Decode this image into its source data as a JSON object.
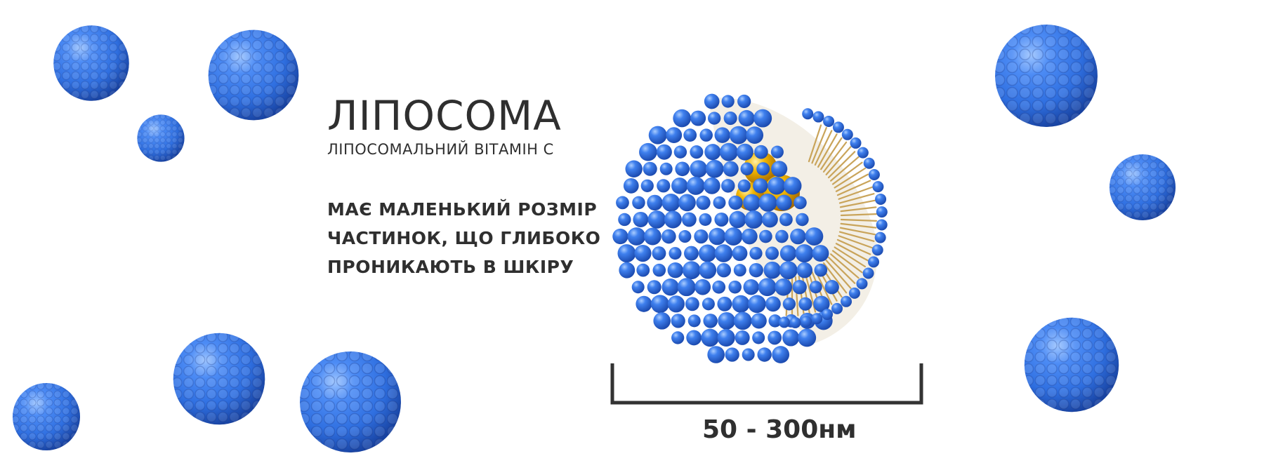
{
  "title": "ЛІПОСОМА",
  "subtitle": "ЛІПОСОМАЛЬНИЙ ВІТАМІН С",
  "description_lines": [
    "МАЄ МАЛЕНЬКИЙ РОЗМІР",
    "ЧАСТИНОК, ЩО ГЛИБОКО",
    "ПРОНИКАЮТЬ В ШКІРУ"
  ],
  "size_label": "50 - 300нм",
  "colors": {
    "sphere_blue": "#2f6fe0",
    "sphere_dark": "#1446a8",
    "lipid_tail": "#c9a45a",
    "core_gold": "#e9a800",
    "text": "#2f2f2f"
  },
  "icons": {
    "floating_spheres": "liposome-sphere-icon",
    "cutaway": "liposome-cross-section-icon",
    "scale_bar": "scale-bracket-icon"
  }
}
